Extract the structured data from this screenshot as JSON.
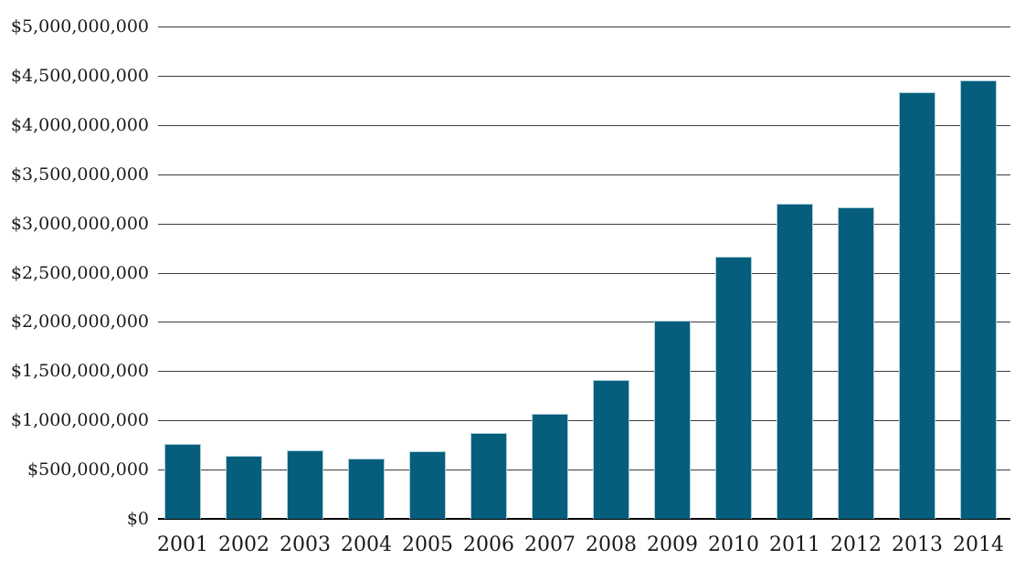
{
  "chart_data": {
    "type": "bar",
    "title": "",
    "xlabel": "",
    "ylabel": "",
    "categories": [
      "2001",
      "2002",
      "2003",
      "2004",
      "2005",
      "2006",
      "2007",
      "2008",
      "2009",
      "2010",
      "2011",
      "2012",
      "2013",
      "2014"
    ],
    "values": [
      760000000,
      640000000,
      700000000,
      610000000,
      690000000,
      875000000,
      1070000000,
      1410000000,
      2010000000,
      2660000000,
      3200000000,
      3160000000,
      4330000000,
      4450000000
    ],
    "ylim": [
      0,
      5000000000
    ],
    "y_tick_step": 500000000,
    "y_tick_labels_top_to_bottom": [
      "$5,000,000,000",
      "$4,500,000,000",
      "$4,000,000,000",
      "$3,500,000,000",
      "$3,000,000,000",
      "$2,500,000,000",
      "$2,000,000,000",
      "$1,500,000,000",
      "$1,000,000,000",
      "$500,000,000",
      "$0"
    ],
    "grid": true,
    "gridlines_behind_bars": true,
    "legend_position": "none",
    "colors": {
      "bar_fill": "#065e7c",
      "bar_edge": "#aacdd9",
      "gridline": "#3c3c3c",
      "axis_line": "#000000",
      "label_text": "#1a1a1a",
      "background": "#ffffff"
    }
  }
}
